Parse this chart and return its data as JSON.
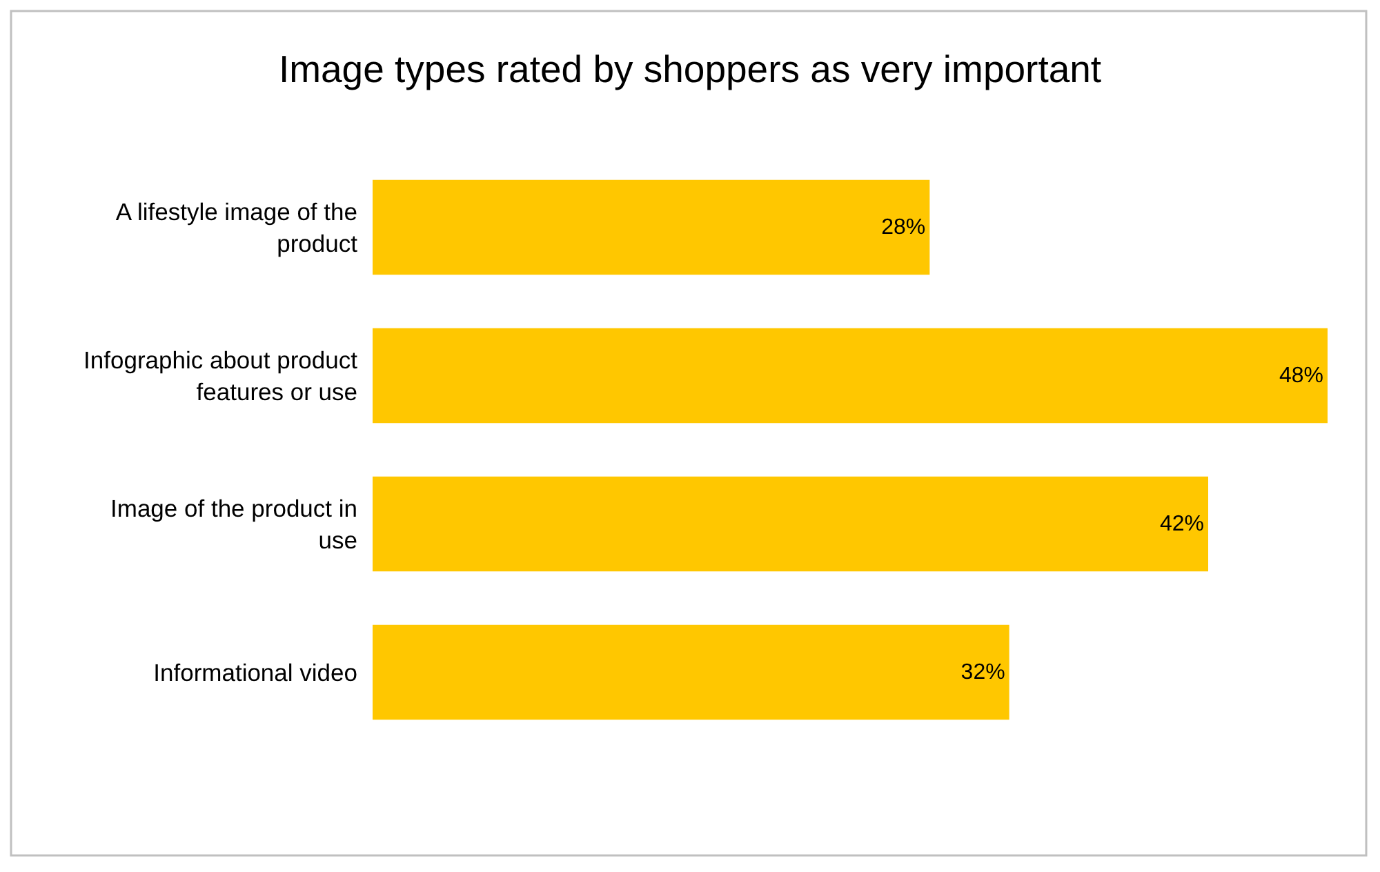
{
  "chart_data": {
    "type": "bar",
    "orientation": "horizontal",
    "title": "Image types rated by shoppers as very important",
    "categories": [
      "A lifestyle image of the product",
      "Infographic about product features or use",
      "Image of the product in use",
      "Informational video"
    ],
    "values": [
      28,
      48,
      42,
      32
    ],
    "color": "#ffc700",
    "value_labels": [
      "28%",
      "48%",
      "42%",
      "32%"
    ]
  }
}
